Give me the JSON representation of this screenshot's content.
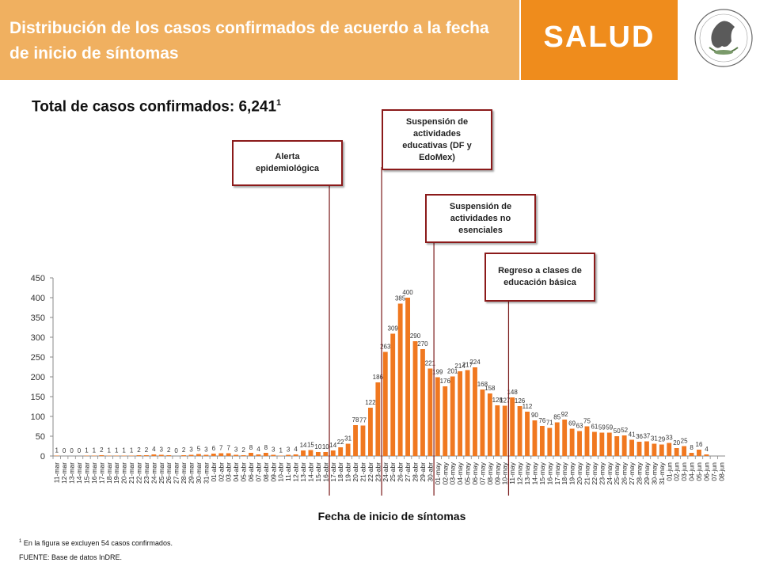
{
  "header": {
    "title": "Distribución de los casos confirmados de acuerdo a la fecha de inicio de síntomas",
    "brand": "SALUD",
    "seal_text": "ESTADOS UNIDOS MEXICANOS"
  },
  "total_label": "Total de casos confirmados: 6,241",
  "total_sup": "1",
  "annotations": {
    "alerta": "Alerta epidemiológica",
    "suspension_educativas": "Suspensión de actividades educativas (DF y EdoMex)",
    "suspension_no_esenciales": "Suspensión de actividades no esenciales",
    "regreso_clases": "Regreso a clases de educación básica"
  },
  "footnote_sup": "1",
  "footnote": " En la figura se excluyen 54 casos confirmados.",
  "source": "FUENTE: Base de datos InDRE.",
  "colors": {
    "bar": "#f07820",
    "title_band": "#f0b060",
    "salud_band": "#ef8c1c",
    "annotation_border": "#8b1a1a"
  },
  "chart_data": {
    "type": "bar",
    "xlabel": "Fecha de inicio de síntomas",
    "ylabel": "",
    "ylim": [
      0,
      450
    ],
    "yticks": [
      0,
      50,
      100,
      150,
      200,
      250,
      300,
      350,
      400,
      450
    ],
    "grid": false,
    "categories": [
      "11-mar",
      "12-mar",
      "13-mar",
      "14-mar",
      "15-mar",
      "16-mar",
      "17-mar",
      "18-mar",
      "19-mar",
      "20-mar",
      "21-mar",
      "22-mar",
      "23-mar",
      "24-mar",
      "25-mar",
      "26-mar",
      "27-mar",
      "28-mar",
      "29-mar",
      "30-mar",
      "31-mar",
      "01-abr",
      "02-abr",
      "03-abr",
      "04-abr",
      "05-abr",
      "06-abr",
      "07-abr",
      "08-abr",
      "09-abr",
      "10-abr",
      "11-abr",
      "12-abr",
      "13-abr",
      "14-abr",
      "15-abr",
      "16-abr",
      "17-abr",
      "18-abr",
      "19-abr",
      "20-abr",
      "21-abr",
      "22-abr",
      "23-abr",
      "24-abr",
      "25-abr",
      "26-abr",
      "27-abr",
      "28-abr",
      "29-abr",
      "30-abr",
      "01-may",
      "02-may",
      "03-may",
      "04-may",
      "05-may",
      "06-may",
      "07-may",
      "08-may",
      "09-may",
      "10-may",
      "11-may",
      "12-may",
      "13-may",
      "14-may",
      "15-may",
      "16-may",
      "17-may",
      "18-may",
      "19-may",
      "20-may",
      "21-may",
      "22-may",
      "23-may",
      "24-may",
      "25-may",
      "26-may",
      "27-may",
      "28-may",
      "29-may",
      "30-may",
      "31-may",
      "01-jun",
      "02-jun",
      "03-jun",
      "04-jun",
      "05-jun",
      "06-jun",
      "07-jun",
      "08-jun"
    ],
    "values": [
      1,
      0,
      0,
      0,
      1,
      1,
      2,
      1,
      1,
      1,
      1,
      2,
      2,
      4,
      3,
      2,
      0,
      2,
      3,
      5,
      3,
      6,
      7,
      7,
      3,
      2,
      8,
      4,
      8,
      3,
      1,
      3,
      4,
      14,
      15,
      10,
      10,
      14,
      22,
      31,
      78,
      77,
      122,
      186,
      263,
      309,
      385,
      400,
      290,
      270,
      221,
      199,
      176,
      201,
      214,
      217,
      224,
      168,
      158,
      128,
      127,
      148,
      126,
      112,
      90,
      76,
      71,
      85,
      92,
      69,
      63,
      75,
      61,
      59,
      59,
      50,
      52,
      41,
      36,
      37,
      31,
      29,
      33,
      20,
      25,
      8,
      16,
      4,
      null,
      null
    ],
    "data_labels": [
      "1",
      "0",
      "0",
      "0",
      "1",
      "1",
      "2",
      "1",
      "1",
      "1",
      "1",
      "2",
      "2",
      "4",
      "3",
      "2",
      "0",
      "2",
      "3",
      "5",
      "3",
      "6",
      "7",
      "7",
      "3",
      "2",
      "8",
      "4",
      "8",
      "3",
      "1",
      "3",
      "4",
      "14",
      "15",
      "10",
      "10",
      "14",
      "22",
      "31",
      "78",
      "77",
      "122",
      "186",
      "263",
      "309",
      "385",
      "400",
      "290",
      "270",
      "221",
      "199",
      "176",
      "201",
      "214",
      "217",
      "224",
      "168",
      "158",
      "128",
      "127",
      "148",
      "126",
      "112",
      "90",
      "76",
      "71",
      "85",
      "92",
      "69",
      "63",
      "75",
      "61",
      "59",
      "59",
      "50",
      "52",
      "41",
      "36",
      "37",
      "31",
      "29",
      "33",
      "20",
      "25",
      "8",
      "16",
      "4",
      "",
      ""
    ]
  }
}
